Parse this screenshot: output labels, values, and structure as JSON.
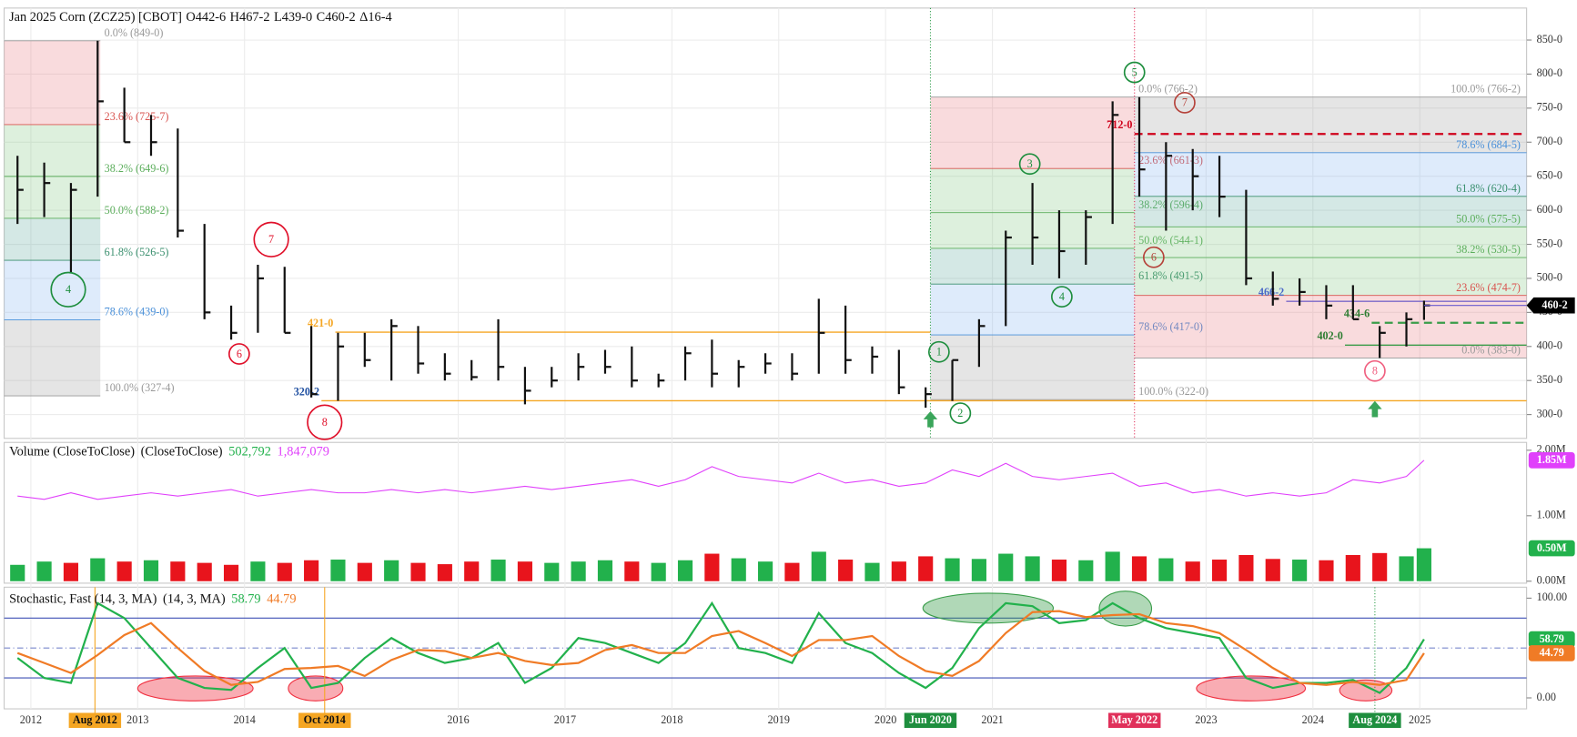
{
  "chart_data": [
    {
      "type": "ohlc",
      "title": "Jan 2025 Corn (ZCZ25) [CBOT]",
      "ohlc_legend": [
        "O442-6",
        "H467-2",
        "L439-0",
        "C460-2",
        "Δ16-4"
      ],
      "xlim": [
        2011.75,
        2026.0
      ],
      "ylim": [
        265,
        897
      ],
      "grid": true,
      "yticks": [
        {
          "value": 300,
          "label": "300-0"
        },
        {
          "value": 350,
          "label": "350-0"
        },
        {
          "value": 400,
          "label": "400-0"
        },
        {
          "value": 450,
          "label": "450-0"
        },
        {
          "value": 500,
          "label": "500-0"
        },
        {
          "value": 550,
          "label": "550-0"
        },
        {
          "value": 600,
          "label": "600-0"
        },
        {
          "value": 650,
          "label": "650-0"
        },
        {
          "value": 700,
          "label": "700-0"
        },
        {
          "value": 750,
          "label": "750-0"
        },
        {
          "value": 800,
          "label": "800-0"
        },
        {
          "value": 850,
          "label": "850-0"
        }
      ],
      "x": [
        2011.875,
        2012.125,
        2012.375,
        2012.625,
        2012.875,
        2013.125,
        2013.375,
        2013.625,
        2013.875,
        2014.125,
        2014.375,
        2014.625,
        2014.875,
        2015.125,
        2015.375,
        2015.625,
        2015.875,
        2016.125,
        2016.375,
        2016.625,
        2016.875,
        2017.125,
        2017.375,
        2017.625,
        2017.875,
        2018.125,
        2018.375,
        2018.625,
        2018.875,
        2019.125,
        2019.375,
        2019.625,
        2019.875,
        2020.125,
        2020.375,
        2020.625,
        2020.875,
        2021.125,
        2021.375,
        2021.625,
        2021.875,
        2022.125,
        2022.375,
        2022.625,
        2022.875,
        2023.125,
        2023.375,
        2023.625,
        2023.875,
        2024.125,
        2024.375,
        2024.625,
        2024.875,
        2025.04
      ],
      "high": [
        680,
        670,
        640,
        849,
        780,
        740,
        720,
        580,
        460,
        520,
        517,
        430,
        420,
        420,
        440,
        430,
        390,
        380,
        440,
        370,
        370,
        390,
        395,
        400,
        360,
        400,
        410,
        380,
        390,
        390,
        470,
        460,
        400,
        395,
        340,
        380,
        440,
        570,
        640,
        600,
        600,
        760,
        766.25,
        700,
        690,
        680,
        630,
        510,
        500,
        490,
        490,
        430,
        450,
        467.25
      ],
      "low": [
        580,
        590,
        509,
        620,
        700,
        680,
        560,
        440,
        410,
        420,
        420,
        325,
        320.25,
        370,
        350,
        360,
        350,
        350,
        350,
        315,
        340,
        350,
        360,
        340,
        340,
        350,
        340,
        340,
        360,
        350,
        360,
        360,
        360,
        330,
        310,
        320,
        370,
        430,
        520,
        500,
        520,
        580,
        620,
        570,
        600,
        590,
        490,
        460,
        460,
        440,
        440,
        383,
        400,
        439
      ],
      "close": [
        630,
        640,
        630,
        760,
        700,
        700,
        570,
        450,
        420,
        500,
        420,
        330,
        400,
        380,
        430,
        375,
        360,
        355,
        370,
        335,
        350,
        370,
        370,
        350,
        350,
        390,
        360,
        370,
        375,
        360,
        420,
        380,
        385,
        340,
        330,
        380,
        430,
        560,
        560,
        540,
        590,
        740,
        660,
        680,
        650,
        620,
        500,
        470,
        480,
        460,
        440,
        420,
        440,
        460.25
      ],
      "close_label": "460-2",
      "fib_sets": [
        {
          "x": [
            2011.75,
            2012.65
          ],
          "label_anchor": "start",
          "zone_colors": [
            "#e8737b",
            "#7dc47a",
            "#7dc47a",
            "#5aa89a",
            "#7fb3ef",
            "#9a9a9a"
          ],
          "levels": [
            {
              "value": 849,
              "label": "0.0% (849-0)",
              "color": "#999"
            },
            {
              "value": 725.875,
              "label": "23.6% (725-7)",
              "color": "#d9534f"
            },
            {
              "value": 649.75,
              "label": "38.2% (649-6)",
              "color": "#5cae5c"
            },
            {
              "value": 588.25,
              "label": "50.0% (588-2)",
              "color": "#5cae5c"
            },
            {
              "value": 526.625,
              "label": "61.8% (526-5)",
              "color": "#3a8f6e"
            },
            {
              "value": 439,
              "label": "78.6% (439-0)",
              "color": "#4a90d9"
            },
            {
              "value": 327.5,
              "label": "100.0% (327-4)",
              "color": "#999"
            }
          ]
        },
        {
          "x": [
            2020.42,
            2022.33
          ],
          "label_anchor": "start",
          "zone_colors": [
            "#e8737b",
            "#7dc47a",
            "#7dc47a",
            "#5aa89a",
            "#7fb3ef",
            "#9a9a9a"
          ],
          "levels": [
            {
              "value": 766.25,
              "label": "0.0% (766-2)",
              "color": "#999"
            },
            {
              "value": 661.375,
              "label": "23.6% (661-3)",
              "color": "#d9534f"
            },
            {
              "value": 596.5,
              "label": "38.2% (596-4)",
              "color": "#5cae5c"
            },
            {
              "value": 544.125,
              "label": "50.0% (544-1)",
              "color": "#5cae5c"
            },
            {
              "value": 491.625,
              "label": "61.8% (491-5)",
              "color": "#3a8f6e"
            },
            {
              "value": 417,
              "label": "78.6% (417-0)",
              "color": "#4a90d9"
            },
            {
              "value": 322,
              "label": "100.0% (322-0)",
              "color": "#999"
            }
          ]
        },
        {
          "x": [
            2022.33,
            2026.0
          ],
          "label_anchor": "end",
          "zone_colors": [
            "#9a9a9a",
            "#7fb3ef",
            "#5aa89a",
            "#7dc47a",
            "#7dc47a",
            "#e8737b"
          ],
          "levels": [
            {
              "value": 766.25,
              "label": "100.0% (766-2)",
              "color": "#999"
            },
            {
              "value": 684.625,
              "label": "78.6% (684-5)",
              "color": "#4a90d9"
            },
            {
              "value": 620.5,
              "label": "61.8% (620-4)",
              "color": "#3a8f6e"
            },
            {
              "value": 575.625,
              "label": "50.0% (575-5)",
              "color": "#5cae5c"
            },
            {
              "value": 530.625,
              "label": "38.2% (530-5)",
              "color": "#5cae5c"
            },
            {
              "value": 474.875,
              "label": "23.6% (474-7)",
              "color": "#d9534f"
            },
            {
              "value": 383,
              "label": "0.0% (383-0)",
              "color": "#999"
            }
          ]
        }
      ],
      "hlines": [
        {
          "value": 421,
          "label": "421-0",
          "x": [
            2014.85,
            2020.42
          ],
          "color": "#f5a623",
          "label_color": "#f5a623",
          "dash": false
        },
        {
          "value": 320.25,
          "label": "320-2",
          "x": [
            2014.72,
            2026.0
          ],
          "color": "#f5a623",
          "label_color": "#1f4fa0",
          "dash": false
        },
        {
          "value": 712,
          "label": "712-0",
          "x": [
            2022.33,
            2026.0
          ],
          "color": "#d0021b",
          "label_color": "#d0021b",
          "dash": true
        },
        {
          "value": 466.25,
          "label": "466-2",
          "x": [
            2023.75,
            2026.0
          ],
          "color": "#7b68c8",
          "label_color": "#4a68c8",
          "dash": false
        },
        {
          "value": 434.75,
          "label": "434-6",
          "x": [
            2024.55,
            2026.0
          ],
          "color": "#3a9d4a",
          "label_color": "#2e7d32",
          "dash": true
        },
        {
          "value": 402,
          "label": "402-0",
          "x": [
            2024.3,
            2026.0
          ],
          "color": "#3a9d4a",
          "label_color": "#2e7d32",
          "dash": false
        }
      ],
      "markers": [
        {
          "label": "4",
          "x": 2012.35,
          "y": 483.5,
          "color": "#1e8e3e",
          "big": true
        },
        {
          "label": "7",
          "x": 2014.25,
          "y": 557,
          "color": "#e0102a",
          "big": true
        },
        {
          "label": "6",
          "x": 2013.95,
          "y": 389,
          "color": "#e0102a",
          "big": false
        },
        {
          "label": "8",
          "x": 2014.75,
          "y": 288.6,
          "color": "#e0102a",
          "big": true
        },
        {
          "label": "1",
          "x": 2020.5,
          "y": 392,
          "color": "#1e8e3e",
          "big": false
        },
        {
          "label": "2",
          "x": 2020.7,
          "y": 302,
          "color": "#1e8e3e",
          "big": false
        },
        {
          "label": "3",
          "x": 2021.35,
          "y": 668,
          "color": "#1e8e3e",
          "big": false
        },
        {
          "label": "4",
          "x": 2021.65,
          "y": 473,
          "color": "#1e8e3e",
          "big": false
        },
        {
          "label": "5",
          "x": 2022.33,
          "y": 802.5,
          "color": "#1e8e3e",
          "big": false
        },
        {
          "label": "7",
          "x": 2022.8,
          "y": 758,
          "color": "#b5423a",
          "big": false
        },
        {
          "label": "6",
          "x": 2022.51,
          "y": 531,
          "color": "#b5423a",
          "big": false
        },
        {
          "label": "8",
          "x": 2024.58,
          "y": 364,
          "color": "#f06080",
          "big": false
        }
      ],
      "vlines": [
        {
          "x": 2020.42,
          "color": "#2e9d4a"
        },
        {
          "x": 2022.33,
          "color": "#e0305a"
        }
      ],
      "arrows": [
        {
          "x": 2020.42,
          "y": 293
        },
        {
          "x": 2024.58,
          "y": 308
        }
      ]
    },
    {
      "type": "volume",
      "title": "Volume (CloseToClose)",
      "subtitle": "(CloseToClose)",
      "xlim": [
        2011.75,
        2026.0
      ],
      "ylim": [
        -30000,
        2120000
      ],
      "yticks": [
        {
          "value": 0,
          "label": "0.00M"
        },
        {
          "value": 1000000,
          "label": "1.00M"
        },
        {
          "value": 2000000,
          "label": "2.00M"
        }
      ],
      "series": [
        {
          "kind": "bar",
          "up_color": "#22b14c",
          "down_color": "#e8141c",
          "last_label": "502,792",
          "badge": "0.50M",
          "values": [
            250000,
            300000,
            280000,
            350000,
            300000,
            320000,
            300000,
            280000,
            250000,
            300000,
            280000,
            320000,
            330000,
            280000,
            320000,
            280000,
            260000,
            300000,
            330000,
            300000,
            280000,
            300000,
            320000,
            300000,
            280000,
            320000,
            420000,
            350000,
            300000,
            280000,
            450000,
            330000,
            280000,
            300000,
            380000,
            350000,
            340000,
            420000,
            380000,
            330000,
            320000,
            450000,
            380000,
            350000,
            300000,
            330000,
            400000,
            340000,
            330000,
            320000,
            400000,
            430000,
            380000,
            502792
          ]
        },
        {
          "kind": "line",
          "color": "#e040fb",
          "last_label": "1,847,079",
          "badge": "1.85M",
          "values": [
            1300000,
            1250000,
            1350000,
            1250000,
            1300000,
            1350000,
            1300000,
            1350000,
            1400000,
            1300000,
            1350000,
            1400000,
            1350000,
            1350000,
            1400000,
            1350000,
            1400000,
            1350000,
            1400000,
            1450000,
            1400000,
            1450000,
            1500000,
            1550000,
            1450000,
            1550000,
            1750000,
            1600000,
            1550000,
            1500000,
            1650000,
            1500000,
            1550000,
            1450000,
            1500000,
            1700000,
            1600000,
            1800000,
            1600000,
            1550000,
            1600000,
            1650000,
            1450000,
            1500000,
            1350000,
            1400000,
            1300000,
            1350000,
            1300000,
            1350000,
            1550000,
            1500000,
            1600000,
            1847079
          ]
        }
      ]
    },
    {
      "type": "stochastic",
      "title": "Stochastic, Fast (14, 3, MA)",
      "subtitle": "(14, 3, MA)",
      "xlim": [
        2011.75,
        2026.0
      ],
      "ylim": [
        -11,
        111
      ],
      "yticks": [
        {
          "value": 0,
          "label": "0.00"
        },
        {
          "value": 100,
          "label": "100.00"
        }
      ],
      "bands": [
        20,
        80
      ],
      "midline": 50,
      "xticks": [
        2012,
        2013,
        2014,
        2016,
        2017,
        2018,
        2019,
        2020,
        2021,
        2023,
        2024,
        2025
      ],
      "series": [
        {
          "color": "#22b14c",
          "badge_color": "#22b14c",
          "values": [
            40,
            20,
            15,
            95,
            80,
            50,
            20,
            10,
            8,
            30,
            50,
            10,
            15,
            40,
            60,
            45,
            35,
            40,
            55,
            15,
            30,
            60,
            55,
            45,
            35,
            55,
            95,
            50,
            45,
            35,
            85,
            55,
            45,
            25,
            10,
            30,
            70,
            95,
            92,
            75,
            78,
            95,
            80,
            70,
            65,
            60,
            20,
            10,
            15,
            15,
            18,
            5,
            30,
            58.79
          ]
        },
        {
          "color": "#f07b26",
          "badge_color": "#f07b26",
          "values": [
            45,
            35,
            25,
            43,
            63,
            75,
            50,
            27,
            13,
            16,
            29,
            30,
            32,
            22,
            38,
            48,
            47,
            40,
            45,
            37,
            33,
            35,
            48,
            53,
            45,
            45,
            62,
            67,
            55,
            42,
            58,
            58,
            62,
            42,
            27,
            22,
            37,
            65,
            86,
            87,
            81,
            83,
            84,
            75,
            72,
            65,
            48,
            30,
            15,
            13,
            16,
            13,
            18,
            44.79
          ]
        }
      ],
      "highlights": [
        {
          "x": [
            2013.0,
            2014.08
          ],
          "y": [
            -3,
            22
          ],
          "color": "#f03040"
        },
        {
          "x": [
            2014.41,
            2014.92
          ],
          "y": [
            -3,
            22
          ],
          "color": "#f03040"
        },
        {
          "x": [
            2022.91,
            2023.93
          ],
          "y": [
            -3,
            22
          ],
          "color": "#f03040"
        },
        {
          "x": [
            2024.25,
            2024.74
          ],
          "y": [
            -3,
            18
          ],
          "color": "#f03040"
        },
        {
          "x": [
            2020.35,
            2021.57
          ],
          "y": [
            75,
            105
          ],
          "color": "#3a9d4a"
        },
        {
          "x": [
            2022.0,
            2022.49
          ],
          "y": [
            72,
            107
          ],
          "color": "#3a9d4a"
        }
      ],
      "vlines": [
        {
          "x": 2012.6,
          "color": "#f5a623"
        },
        {
          "x": 2014.75,
          "color": "#f5a623"
        },
        {
          "x": 2024.58,
          "color": "#2e9d4a"
        }
      ],
      "date_labels": [
        {
          "label": "Aug 2012",
          "x": 2012.6,
          "color": "#f5a623"
        },
        {
          "label": "Oct 2014",
          "x": 2014.75,
          "color": "#f5a623"
        },
        {
          "label": "Jun 2020",
          "x": 2020.42,
          "color": "#1e8e3e"
        },
        {
          "label": "May 2022",
          "x": 2022.33,
          "color": "#e0305a"
        },
        {
          "label": "Aug 2024",
          "x": 2024.58,
          "color": "#1e8e3e"
        }
      ]
    }
  ]
}
